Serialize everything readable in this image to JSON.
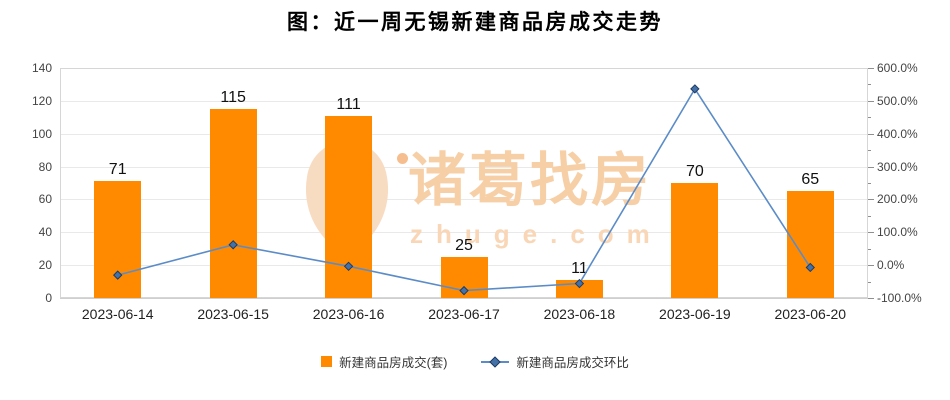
{
  "title": "图：近一周无锡新建商品房成交走势",
  "watermark": {
    "brand": "诸葛找房",
    "domain": "zhuge.com",
    "logo": "zhuge-feather-logo"
  },
  "colors": {
    "bar": "#FF8A00",
    "line": "#5B8CC8",
    "marker_fill": "#4472A8",
    "marker_stroke": "#1F3B63",
    "watermark": "#F7CFA6"
  },
  "legend": [
    {
      "label": "新建商品房成交(套)",
      "type": "bar"
    },
    {
      "label": "新建商品房成交环比",
      "type": "line"
    }
  ],
  "chart_data": {
    "type": "bar+line",
    "title": "图：近一周无锡新建商品房成交走势",
    "categories": [
      "2023-06-14",
      "2023-06-15",
      "2023-06-16",
      "2023-06-17",
      "2023-06-18",
      "2023-06-19",
      "2023-06-20"
    ],
    "series": [
      {
        "name": "新建商品房成交(套)",
        "type": "bar",
        "y_axis": "left",
        "values": [
          71,
          115,
          111,
          25,
          11,
          70,
          65
        ]
      },
      {
        "name": "新建商品房成交环比",
        "type": "line",
        "y_axis": "right",
        "values_pct": [
          -30.4,
          62.0,
          -3.5,
          -77.5,
          -56.0,
          536.4,
          -7.1
        ]
      }
    ],
    "left_axis": {
      "ticks": [
        "140",
        "120",
        "100",
        "80",
        "60",
        "40",
        "20",
        "0"
      ],
      "range": [
        0,
        140
      ]
    },
    "right_axis": {
      "ticks": [
        "600.0%",
        "500.0%",
        "400.0%",
        "300.0%",
        "200.0%",
        "100.0%",
        "0.0%",
        "-100.0%"
      ],
      "range_pct": [
        -100,
        600
      ]
    },
    "grid": true,
    "legend_position": "bottom"
  }
}
